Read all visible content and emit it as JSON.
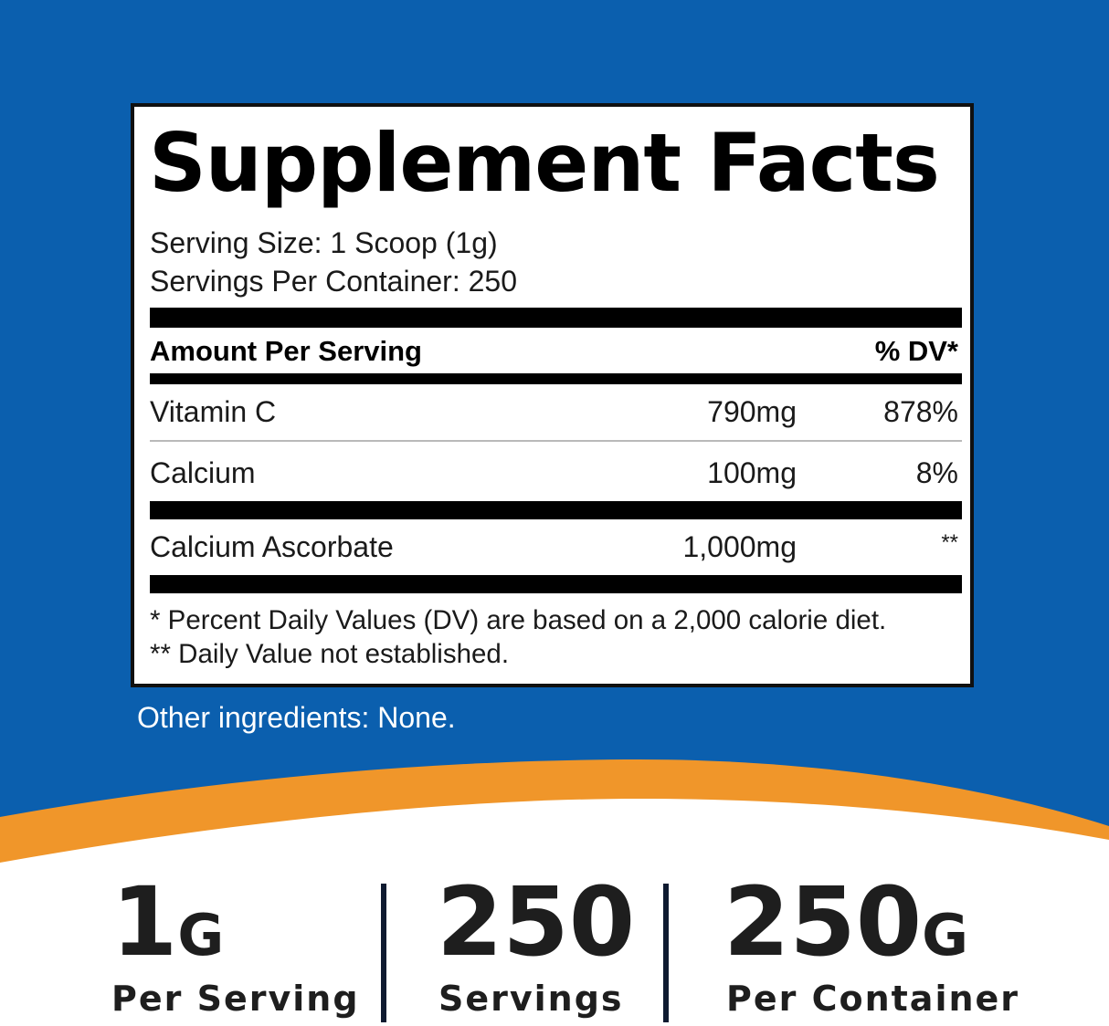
{
  "colors": {
    "background_blue": "#0b5fae",
    "accent_orange": "#f0962a",
    "bottom_white": "#ffffff"
  },
  "facts": {
    "title": "Supplement Facts",
    "serving_size": "Serving Size: 1 Scoop (1g)",
    "servings_per_container": "Servings Per Container: 250",
    "header": {
      "amount": "Amount Per Serving",
      "dv": "% DV*"
    },
    "rows": [
      {
        "name": "Vitamin C",
        "amount": "790mg",
        "dv": "878%"
      },
      {
        "name": "Calcium",
        "amount": "100mg",
        "dv": "8%"
      },
      {
        "name": "Calcium Ascorbate",
        "amount": "1,000mg",
        "dv": "**"
      }
    ],
    "footnotes": [
      "* Percent Daily Values (DV) are based on a 2,000 calorie diet.",
      "** Daily Value not established."
    ]
  },
  "other_ingredients": "Other ingredients: None.",
  "stats": [
    {
      "value": "1",
      "unit": "G",
      "label": "Per Serving"
    },
    {
      "value": "250",
      "unit": "",
      "label": "Servings"
    },
    {
      "value": "250",
      "unit": "G",
      "label": "Per Container"
    }
  ]
}
